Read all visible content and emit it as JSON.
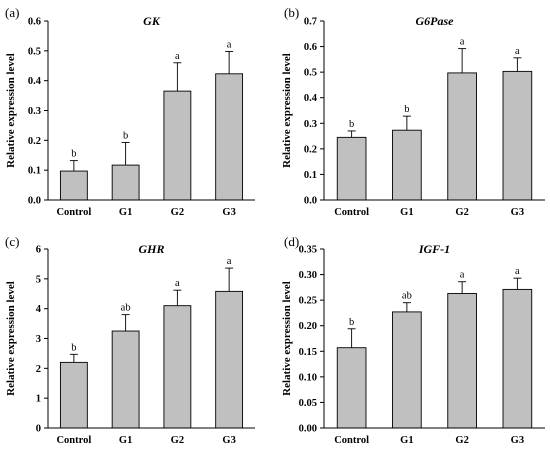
{
  "chart_data": [
    {
      "type": "bar",
      "panel_label": "(a)",
      "title": "GK",
      "ylabel": "Relative expression level",
      "categories": [
        "Control",
        "G1",
        "G2",
        "G3"
      ],
      "values": [
        0.097,
        0.117,
        0.365,
        0.423
      ],
      "errors": [
        0.035,
        0.076,
        0.095,
        0.075
      ],
      "significance": [
        "b",
        "b",
        "a",
        "a"
      ],
      "ylim": [
        0,
        0.6
      ],
      "yticks": [
        "0.0",
        "0.1",
        "0.2",
        "0.3",
        "0.4",
        "0.5",
        "0.6"
      ]
    },
    {
      "type": "bar",
      "panel_label": "(b)",
      "title": "G6Pase",
      "ylabel": "Relative expression level",
      "categories": [
        "Control",
        "G1",
        "G2",
        "G3"
      ],
      "values": [
        0.245,
        0.273,
        0.497,
        0.503
      ],
      "errors": [
        0.025,
        0.055,
        0.095,
        0.053
      ],
      "significance": [
        "b",
        "b",
        "a",
        "a"
      ],
      "ylim": [
        0,
        0.7
      ],
      "yticks": [
        "0.0",
        "0.1",
        "0.2",
        "0.3",
        "0.4",
        "0.5",
        "0.6",
        "0.7"
      ]
    },
    {
      "type": "bar",
      "panel_label": "(c)",
      "title": "GHR",
      "ylabel": "Relative expression level",
      "categories": [
        "Control",
        "G1",
        "G2",
        "G3"
      ],
      "values": [
        2.2,
        3.25,
        4.1,
        4.58
      ],
      "errors": [
        0.27,
        0.55,
        0.52,
        0.78
      ],
      "significance": [
        "b",
        "ab",
        "a",
        "a"
      ],
      "ylim": [
        0,
        6
      ],
      "yticks": [
        "0",
        "1",
        "2",
        "3",
        "4",
        "5",
        "6"
      ]
    },
    {
      "type": "bar",
      "panel_label": "(d)",
      "title": "IGF-1",
      "ylabel": "Relative expression level",
      "categories": [
        "Control",
        "G1",
        "G2",
        "G3"
      ],
      "values": [
        0.157,
        0.227,
        0.263,
        0.271
      ],
      "errors": [
        0.037,
        0.018,
        0.023,
        0.022
      ],
      "significance": [
        "b",
        "ab",
        "a",
        "a"
      ],
      "ylim": [
        0,
        0.35
      ],
      "yticks": [
        "0.00",
        "0.05",
        "0.10",
        "0.15",
        "0.20",
        "0.25",
        "0.30",
        "0.35"
      ]
    }
  ],
  "colors": {
    "bar_fill": "#c0c0c0",
    "bar_edge": "#000000"
  }
}
